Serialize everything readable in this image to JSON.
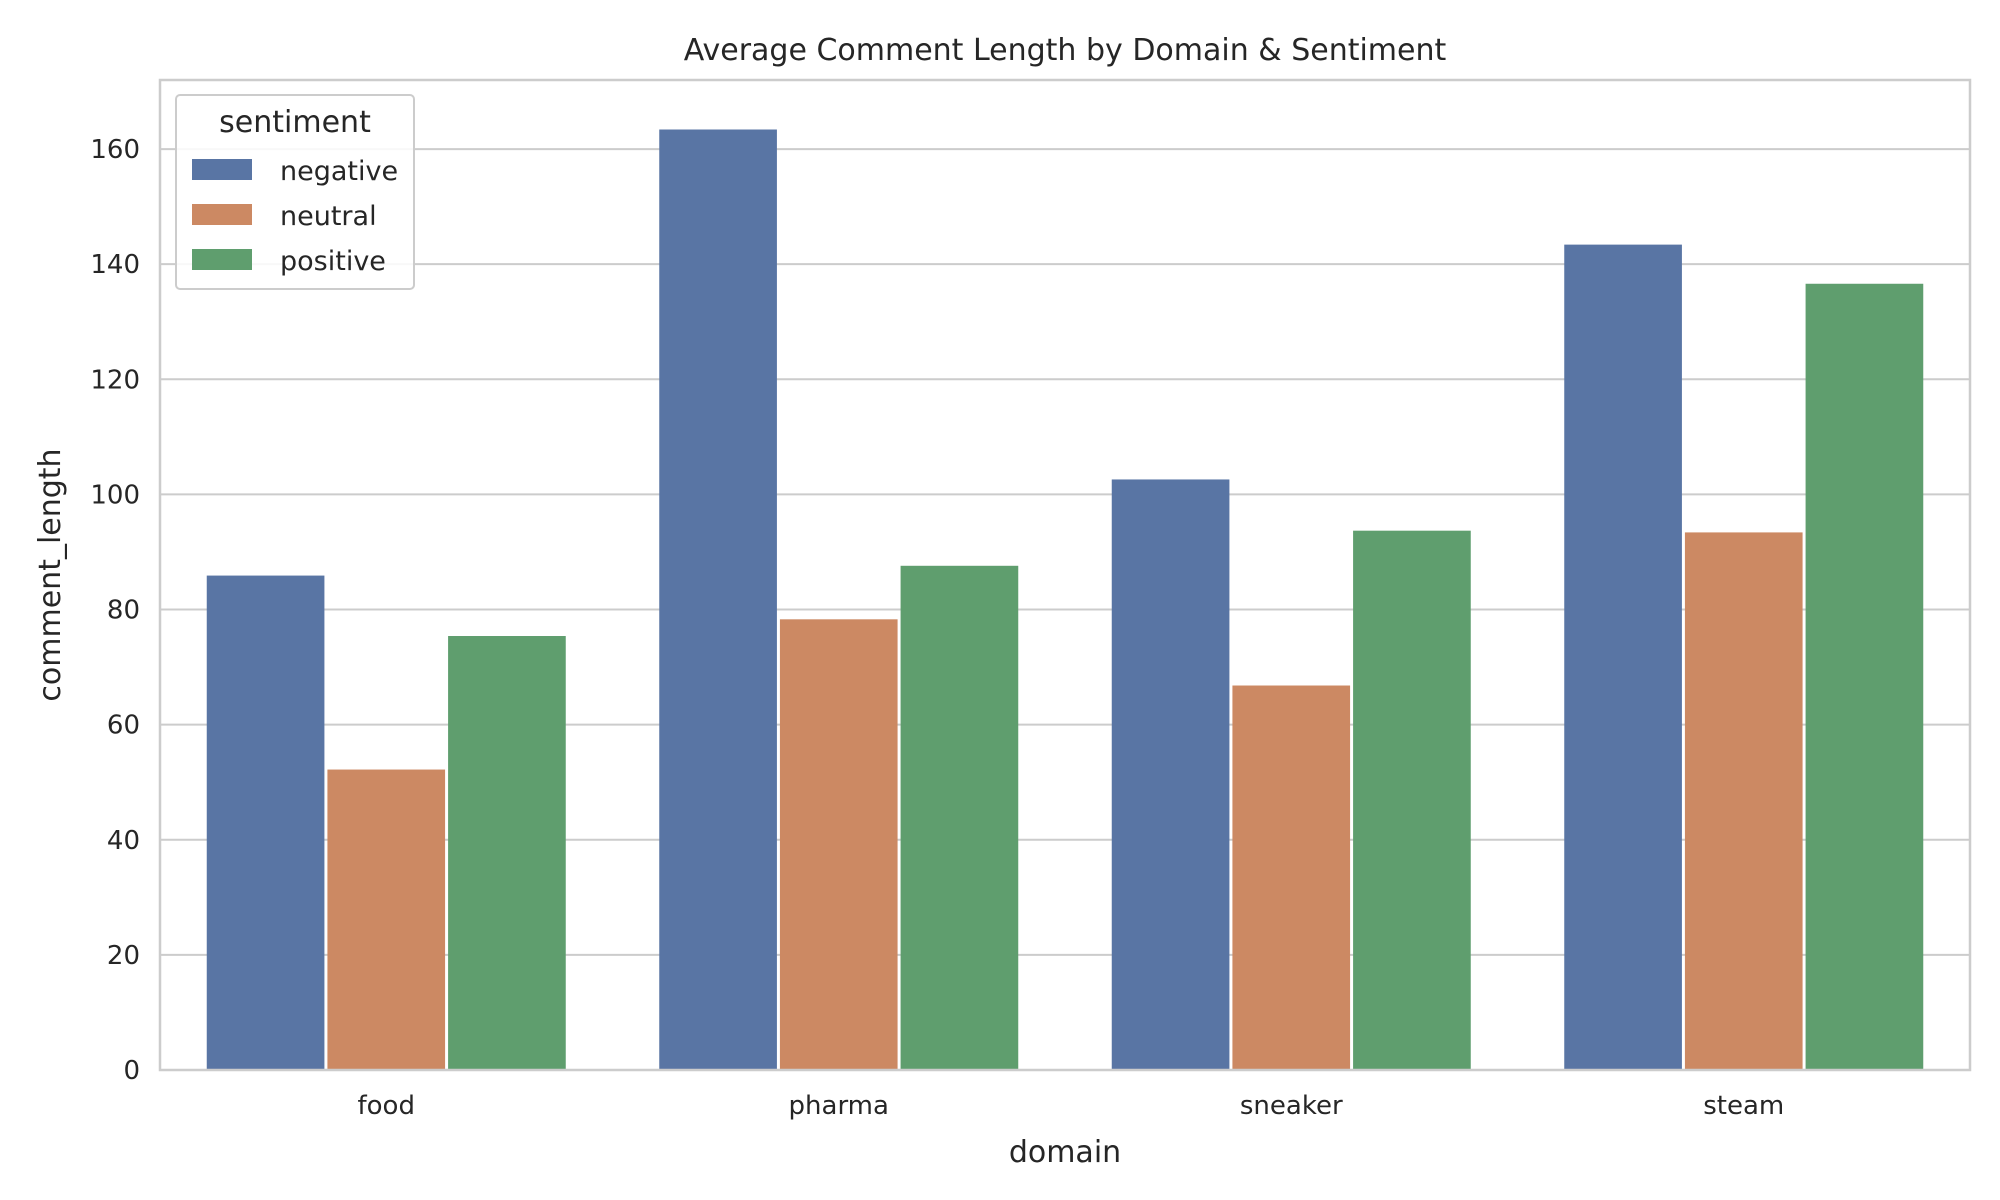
{
  "chart_data": {
    "type": "bar",
    "title": "Average Comment Length by Domain & Sentiment",
    "xlabel": "domain",
    "ylabel": "comment_length",
    "categories": [
      "food",
      "pharma",
      "sneaker",
      "steam"
    ],
    "series": [
      {
        "name": "negative",
        "color": "#5975a4",
        "values": [
          85.9,
          163.4,
          102.6,
          143.4
        ]
      },
      {
        "name": "neutral",
        "color": "#cc8963",
        "values": [
          52.2,
          78.3,
          66.8,
          93.4
        ]
      },
      {
        "name": "positive",
        "color": "#5f9e6e",
        "values": [
          75.4,
          87.6,
          93.7,
          136.6
        ]
      }
    ],
    "ylim": [
      0,
      172
    ],
    "yticks": [
      0,
      20,
      40,
      60,
      80,
      100,
      120,
      140,
      160
    ],
    "grid": true,
    "legend": {
      "title": "sentiment",
      "placement": "top-left"
    }
  }
}
